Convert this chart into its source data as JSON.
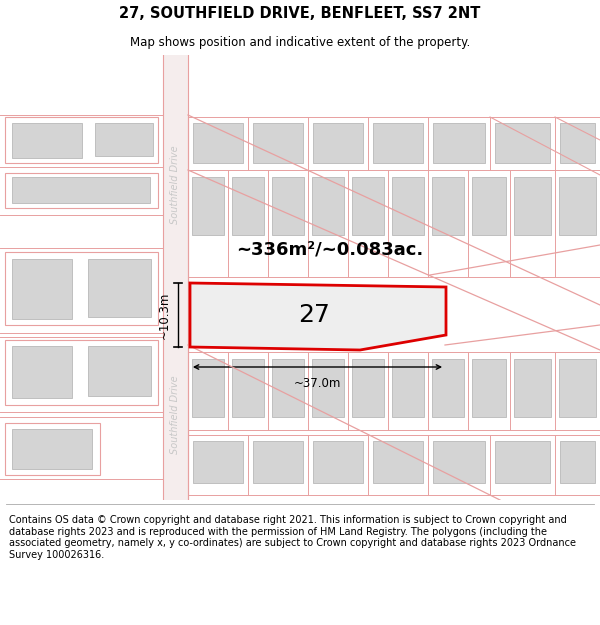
{
  "title": "27, SOUTHFIELD DRIVE, BENFLEET, SS7 2NT",
  "subtitle": "Map shows position and indicative extent of the property.",
  "footer": "Contains OS data © Crown copyright and database right 2021. This information is subject to Crown copyright and database rights 2023 and is reproduced with the permission of HM Land Registry. The polygons (including the associated geometry, namely x, y co-ordinates) are subject to Crown copyright and database rights 2023 Ordnance Survey 100026316.",
  "area_label": "~336m²/~0.083ac.",
  "width_label": "~37.0m",
  "height_label": "~10.3m",
  "plot_number": "27",
  "bg_color": "#ffffff",
  "map_bg": "#ffffff",
  "road_line_color": "#e8a0a0",
  "building_fill": "#d4d4d4",
  "building_edge": "#b8b8b8",
  "plot_fill": "#eeeeee",
  "plot_edge": "#dd0000",
  "street_text_color": "#c8c8c8",
  "title_fontsize": 10.5,
  "subtitle_fontsize": 8.5,
  "footer_fontsize": 7.0,
  "area_fontsize": 13,
  "dim_fontsize": 8.5,
  "plot_label_fontsize": 18
}
